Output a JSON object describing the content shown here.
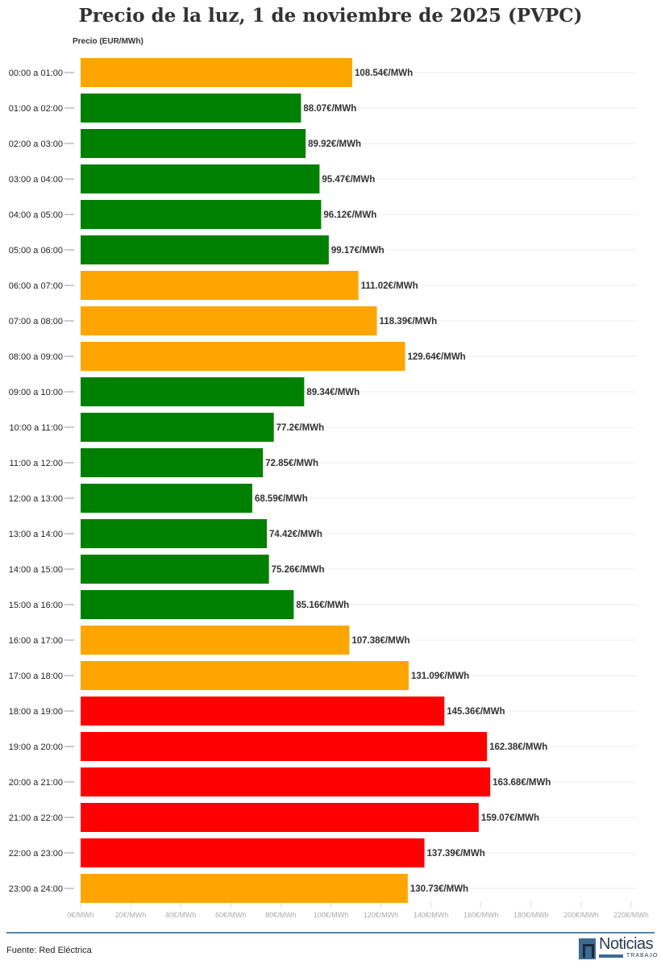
{
  "chart_data": {
    "type": "bar",
    "orientation": "horizontal",
    "title": "Precio de la luz, 1 de noviembre de 2025 (PVPC)",
    "ylabel": "Precio (EUR/MWh)",
    "xlim": [
      0,
      220
    ],
    "x_ticks": [
      "0€/MWh",
      "20€/MWh",
      "40€/MWh",
      "60€/MWh",
      "80€/MWh",
      "100€/MWh",
      "120€/MWh",
      "140€/MWh",
      "160€/MWh",
      "180€/MWh",
      "200€/MWh",
      "220€/MWh"
    ],
    "grid": true,
    "categories": [
      "00:00 a 01:00",
      "01:00 a 02:00",
      "02:00 a 03:00",
      "03:00 a 04:00",
      "04:00 a 05:00",
      "05:00 a 06:00",
      "06:00 a 07:00",
      "07:00 a 08:00",
      "08:00 a 09:00",
      "09:00 a 10:00",
      "10:00 a 11:00",
      "11:00 a 12:00",
      "12:00 a 13:00",
      "13:00 a 14:00",
      "14:00 a 15:00",
      "15:00 a 16:00",
      "16:00 a 17:00",
      "17:00 a 18:00",
      "18:00 a 19:00",
      "19:00 a 20:00",
      "20:00 a 21:00",
      "21:00 a 22:00",
      "22:00 a 23:00",
      "23:00 a 24:00"
    ],
    "values": [
      108.54,
      88.07,
      89.92,
      95.47,
      96.12,
      99.17,
      111.02,
      118.39,
      129.64,
      89.34,
      77.2,
      72.85,
      68.59,
      74.42,
      75.26,
      85.16,
      107.38,
      131.09,
      145.36,
      162.38,
      163.68,
      159.07,
      137.39,
      130.73
    ],
    "labels": [
      "108.54€/MWh",
      "88.07€/MWh",
      "89.92€/MWh",
      "95.47€/MWh",
      "96.12€/MWh",
      "99.17€/MWh",
      "111.02€/MWh",
      "118.39€/MWh",
      "129.64€/MWh",
      "89.34€/MWh",
      "77.2€/MWh",
      "72.85€/MWh",
      "68.59€/MWh",
      "74.42€/MWh",
      "75.26€/MWh",
      "85.16€/MWh",
      "107.38€/MWh",
      "131.09€/MWh",
      "145.36€/MWh",
      "162.38€/MWh",
      "163.68€/MWh",
      "159.07€/MWh",
      "137.39€/MWh",
      "130.73€/MWh"
    ],
    "bar_colors": [
      "orange",
      "green",
      "green",
      "green",
      "green",
      "green",
      "orange",
      "orange",
      "orange",
      "green",
      "green",
      "green",
      "green",
      "green",
      "green",
      "green",
      "orange",
      "orange",
      "red",
      "red",
      "red",
      "red",
      "red",
      "orange"
    ],
    "colors": {
      "orange": "#ffa500",
      "green": "#008000",
      "red": "#ff0000"
    }
  },
  "footer": {
    "source": "Fuente: Red Eléctrica",
    "logo_text": "Noticias",
    "logo_sub": "TRABAJO"
  }
}
